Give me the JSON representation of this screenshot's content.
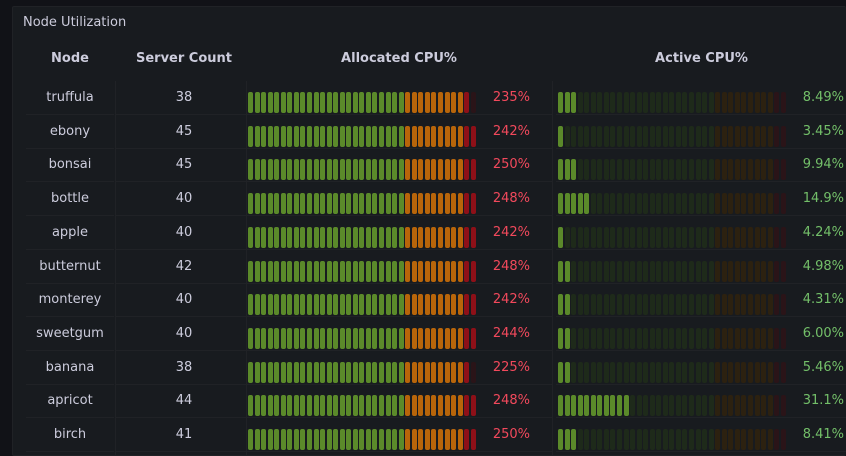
{
  "panel": {
    "title": "Node Utilization"
  },
  "columns": {
    "node": "Node",
    "server_count": "Server Count",
    "allocated_cpu": "Allocated CPU%",
    "active_cpu": "Active CPU%"
  },
  "colors": {
    "green_on": "#5b8a2a",
    "green_off": "#1e2a1a",
    "orange_on": "#b8650a",
    "orange_off": "#2c2110",
    "red_on": "#8e1018",
    "red_off": "#2a1418",
    "alloc_text": "#f2495c",
    "active_text": "#73bf69"
  },
  "gauge_thresholds": {
    "green_end": 0.68,
    "orange_end": 0.93
  },
  "rows": [
    {
      "node": "truffula",
      "server_count": "38",
      "allocated_pct": "235%",
      "allocated_level": 0.98,
      "active_pct": "8.49%",
      "active_level": 0.085
    },
    {
      "node": "ebony",
      "server_count": "45",
      "allocated_pct": "242%",
      "allocated_level": 1.0,
      "active_pct": "3.45%",
      "active_level": 0.035
    },
    {
      "node": "bonsai",
      "server_count": "45",
      "allocated_pct": "250%",
      "allocated_level": 1.0,
      "active_pct": "9.94%",
      "active_level": 0.099
    },
    {
      "node": "bottle",
      "server_count": "40",
      "allocated_pct": "248%",
      "allocated_level": 1.0,
      "active_pct": "14.9%",
      "active_level": 0.149
    },
    {
      "node": "apple",
      "server_count": "40",
      "allocated_pct": "242%",
      "allocated_level": 1.0,
      "active_pct": "4.24%",
      "active_level": 0.042
    },
    {
      "node": "butternut",
      "server_count": "42",
      "allocated_pct": "248%",
      "allocated_level": 1.0,
      "active_pct": "4.98%",
      "active_level": 0.05
    },
    {
      "node": "monterey",
      "server_count": "40",
      "allocated_pct": "242%",
      "allocated_level": 1.0,
      "active_pct": "4.31%",
      "active_level": 0.043
    },
    {
      "node": "sweetgum",
      "server_count": "40",
      "allocated_pct": "244%",
      "allocated_level": 1.0,
      "active_pct": "6.00%",
      "active_level": 0.06
    },
    {
      "node": "banana",
      "server_count": "38",
      "allocated_pct": "225%",
      "allocated_level": 0.98,
      "active_pct": "5.46%",
      "active_level": 0.055
    },
    {
      "node": "apricot",
      "server_count": "44",
      "allocated_pct": "248%",
      "allocated_level": 1.0,
      "active_pct": "31.1%",
      "active_level": 0.311
    },
    {
      "node": "birch",
      "server_count": "41",
      "allocated_pct": "250%",
      "allocated_level": 1.0,
      "active_pct": "8.41%",
      "active_level": 0.084
    }
  ]
}
